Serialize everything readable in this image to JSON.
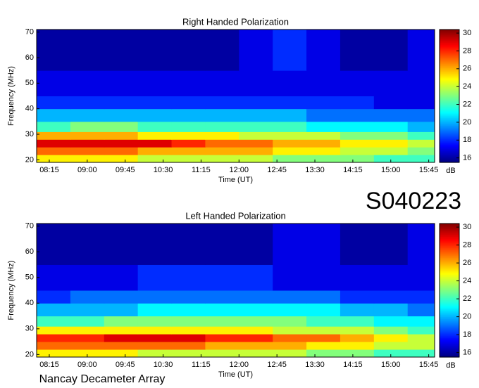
{
  "title": "S040223",
  "footer": "Nancay Decameter Array",
  "chart_data": [
    {
      "type": "heatmap",
      "title": "Right Handed Polarization",
      "x_label": "Time (UT)",
      "y_label": "Frequency (MHz)",
      "colorbar_label": "dB",
      "colormap": "jet",
      "xlim": [
        480,
        952
      ],
      "ylim": [
        19,
        71
      ],
      "zlim": [
        15.5,
        30.4
      ],
      "xticks": [
        {
          "value": 495,
          "label": "08:15"
        },
        {
          "value": 540,
          "label": "09:00"
        },
        {
          "value": 585,
          "label": "09:45"
        },
        {
          "value": 630,
          "label": "10:30"
        },
        {
          "value": 675,
          "label": "11:15"
        },
        {
          "value": 720,
          "label": "12:00"
        },
        {
          "value": 765,
          "label": "12:45"
        },
        {
          "value": 810,
          "label": "13:30"
        },
        {
          "value": 855,
          "label": "14:15"
        },
        {
          "value": 900,
          "label": "15:00"
        },
        {
          "value": 945,
          "label": "15:45"
        }
      ],
      "yticks": [
        20,
        30,
        40,
        50,
        60,
        70
      ],
      "zticks": [
        16,
        18,
        20,
        22,
        24,
        26,
        28,
        30
      ],
      "x_edges": [
        480,
        520,
        560,
        600,
        640,
        680,
        720,
        760,
        800,
        840,
        880,
        920,
        952
      ],
      "y_edges": [
        19,
        22,
        25,
        28,
        31,
        35,
        40,
        45,
        55,
        71
      ],
      "values": [
        [
          25,
          25,
          25,
          24,
          24,
          24,
          24,
          23,
          23,
          23,
          22,
          22
        ],
        [
          27,
          27,
          27,
          26,
          26,
          26,
          26,
          25,
          25,
          24,
          24,
          23
        ],
        [
          29,
          29,
          29,
          29,
          28,
          27,
          27,
          26,
          26,
          25,
          25,
          24
        ],
        [
          26,
          26,
          26,
          25,
          25,
          25,
          24,
          24,
          24,
          23,
          23,
          22
        ],
        [
          22,
          23,
          23,
          22,
          22,
          22,
          22,
          22,
          21,
          21,
          21,
          20
        ],
        [
          20,
          20,
          20,
          20,
          20,
          20,
          20,
          20,
          19,
          19,
          19,
          19
        ],
        [
          18,
          18,
          18,
          18,
          18,
          18,
          18,
          18,
          18,
          18,
          17,
          17
        ],
        [
          17,
          17,
          17,
          17,
          17,
          17,
          17,
          17,
          17,
          17,
          17,
          17
        ],
        [
          16,
          16,
          16,
          16,
          16,
          16,
          17,
          18,
          17,
          16,
          16,
          17
        ]
      ]
    },
    {
      "type": "heatmap",
      "title": "Left Handed Polarization",
      "x_label": "Time (UT)",
      "y_label": "Frequency (MHz)",
      "colorbar_label": "dB",
      "colormap": "jet",
      "xlim": [
        480,
        952
      ],
      "ylim": [
        19,
        71
      ],
      "zlim": [
        15.5,
        30.4
      ],
      "xticks": [
        {
          "value": 495,
          "label": "08:15"
        },
        {
          "value": 540,
          "label": "09:00"
        },
        {
          "value": 585,
          "label": "09:45"
        },
        {
          "value": 630,
          "label": "10:30"
        },
        {
          "value": 675,
          "label": "11:15"
        },
        {
          "value": 720,
          "label": "12:00"
        },
        {
          "value": 765,
          "label": "12:45"
        },
        {
          "value": 810,
          "label": "13:30"
        },
        {
          "value": 855,
          "label": "14:15"
        },
        {
          "value": 900,
          "label": "15:00"
        },
        {
          "value": 945,
          "label": "15:45"
        }
      ],
      "yticks": [
        20,
        30,
        40,
        50,
        60,
        70
      ],
      "zticks": [
        16,
        18,
        20,
        22,
        24,
        26,
        28,
        30
      ],
      "x_edges": [
        480,
        520,
        560,
        600,
        640,
        680,
        720,
        760,
        800,
        840,
        880,
        920,
        952
      ],
      "y_edges": [
        19,
        22,
        25,
        28,
        31,
        35,
        40,
        45,
        55,
        71
      ],
      "values": [
        [
          25,
          25,
          25,
          24,
          24,
          24,
          24,
          24,
          23,
          23,
          22,
          22
        ],
        [
          27,
          27,
          27,
          27,
          27,
          26,
          26,
          26,
          25,
          25,
          24,
          24
        ],
        [
          28,
          28,
          29,
          29,
          29,
          28,
          28,
          27,
          27,
          26,
          25,
          24
        ],
        [
          25,
          25,
          25,
          25,
          25,
          25,
          25,
          24,
          24,
          24,
          23,
          22
        ],
        [
          22,
          22,
          23,
          23,
          23,
          23,
          23,
          23,
          22,
          22,
          21,
          21
        ],
        [
          20,
          20,
          20,
          21,
          21,
          21,
          21,
          21,
          21,
          20,
          20,
          19
        ],
        [
          18,
          19,
          19,
          19,
          19,
          19,
          19,
          19,
          19,
          18,
          18,
          18
        ],
        [
          17,
          17,
          17,
          18,
          18,
          18,
          18,
          17,
          17,
          17,
          17,
          17
        ],
        [
          16,
          16,
          16,
          16,
          16,
          16,
          16,
          17,
          17,
          16,
          16,
          17
        ]
      ]
    }
  ]
}
